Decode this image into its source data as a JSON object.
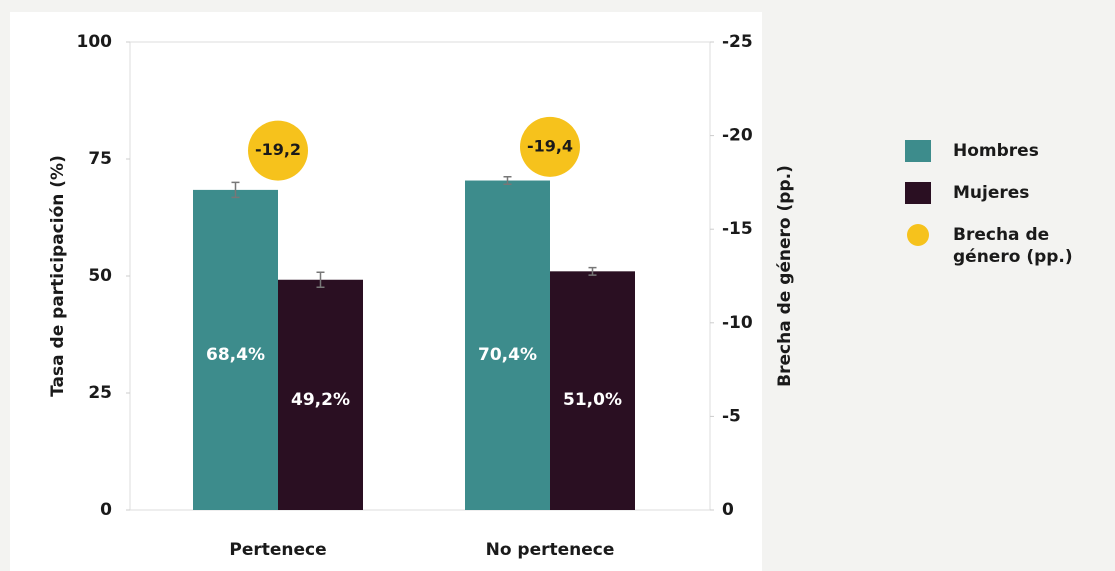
{
  "chart_data": {
    "type": "bar",
    "y_label": "Tasa de participación (%)",
    "y2_label": "Brecha de género (pp.)",
    "categories": [
      "Pertenece",
      "No pertenece"
    ],
    "series": [
      {
        "name": "Hombres",
        "color": "#3d8c8c",
        "values": [
          68.4,
          70.4
        ],
        "value_labels": [
          "68,4%",
          "70,4%"
        ],
        "errors": [
          1.6,
          0.8
        ]
      },
      {
        "name": "Mujeres",
        "color": "#2a0f22",
        "values": [
          49.2,
          51.0
        ],
        "value_labels": [
          "49,2%",
          "51,0%"
        ],
        "errors": [
          1.6,
          0.8
        ]
      },
      {
        "name": "Brecha de género (pp.)",
        "color": "#f6c21c",
        "axis": "y2",
        "values": [
          -19.2,
          -19.4
        ],
        "value_labels": [
          "-19,2",
          "-19,4"
        ]
      }
    ],
    "ylim": [
      0,
      100
    ],
    "yticks": [
      0,
      25,
      50,
      75,
      100
    ],
    "y2lim": [
      0,
      -25
    ],
    "y2ticks": [
      0,
      -5,
      -10,
      -15,
      -20,
      -25
    ]
  }
}
